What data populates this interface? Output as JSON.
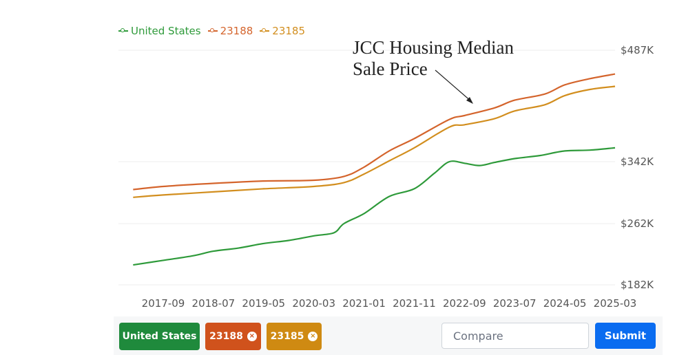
{
  "annotation": {
    "line1": "JCC Housing Median",
    "line2": "Sale Price"
  },
  "legend": [
    {
      "label": "United States",
      "color": "#2e9a3a"
    },
    {
      "label": "23188",
      "color": "#d4642c"
    },
    {
      "label": "23185",
      "color": "#d28e1e"
    }
  ],
  "controls": {
    "chips": [
      {
        "label": "United States",
        "color": "#1f8a3c",
        "removable": false
      },
      {
        "label": "23188",
        "color": "#d0521c",
        "removable": true
      },
      {
        "label": "23185",
        "color": "#cf8a12",
        "removable": true
      }
    ],
    "compare_placeholder": "Compare",
    "submit_label": "Submit",
    "remove_icon": "×"
  },
  "chart_data": {
    "type": "line",
    "title": "",
    "xlabel": "",
    "ylabel": "",
    "x_ticks": [
      "2017-09",
      "2018-07",
      "2019-05",
      "2020-03",
      "2021-01",
      "2021-11",
      "2022-09",
      "2023-07",
      "2024-05",
      "2025-03"
    ],
    "y_ticks": [
      "$182K",
      "$262K",
      "$342K",
      "$487K"
    ],
    "y_tick_values": [
      182000,
      262000,
      342000,
      487000
    ],
    "ylim": [
      182000,
      487000
    ],
    "x_range": [
      "2017-03",
      "2025-03"
    ],
    "grid": true,
    "legend_position": "top-left",
    "series": [
      {
        "name": "United States",
        "color": "#2e9a3a",
        "points": [
          [
            "2017-03",
            208000
          ],
          [
            "2017-09",
            214000
          ],
          [
            "2018-03",
            220000
          ],
          [
            "2018-07",
            226000
          ],
          [
            "2018-12",
            230000
          ],
          [
            "2019-05",
            236000
          ],
          [
            "2019-10",
            240000
          ],
          [
            "2020-03",
            246000
          ],
          [
            "2020-07",
            250000
          ],
          [
            "2020-09",
            262000
          ],
          [
            "2021-01",
            275000
          ],
          [
            "2021-06",
            297000
          ],
          [
            "2021-11",
            307000
          ],
          [
            "2022-03",
            327000
          ],
          [
            "2022-06",
            342000
          ],
          [
            "2022-09",
            340000
          ],
          [
            "2022-12",
            337000
          ],
          [
            "2023-03",
            341000
          ],
          [
            "2023-07",
            346000
          ],
          [
            "2023-12",
            350000
          ],
          [
            "2024-05",
            356000
          ],
          [
            "2024-10",
            357000
          ],
          [
            "2025-03",
            360000
          ]
        ]
      },
      {
        "name": "23188",
        "color": "#d4642c",
        "points": [
          [
            "2017-03",
            306000
          ],
          [
            "2017-09",
            310000
          ],
          [
            "2018-07",
            314000
          ],
          [
            "2019-05",
            317000
          ],
          [
            "2020-03",
            318000
          ],
          [
            "2020-09",
            323000
          ],
          [
            "2021-01",
            335000
          ],
          [
            "2021-06",
            356000
          ],
          [
            "2021-11",
            372000
          ],
          [
            "2022-06",
            397000
          ],
          [
            "2022-09",
            402000
          ],
          [
            "2023-03",
            412000
          ],
          [
            "2023-07",
            422000
          ],
          [
            "2024-01",
            430000
          ],
          [
            "2024-05",
            442000
          ],
          [
            "2024-10",
            450000
          ],
          [
            "2025-03",
            456000
          ]
        ]
      },
      {
        "name": "23185",
        "color": "#d28e1e",
        "points": [
          [
            "2017-03",
            296000
          ],
          [
            "2017-09",
            299000
          ],
          [
            "2018-07",
            303000
          ],
          [
            "2019-05",
            307000
          ],
          [
            "2020-03",
            310000
          ],
          [
            "2020-09",
            315000
          ],
          [
            "2021-01",
            326000
          ],
          [
            "2021-06",
            343000
          ],
          [
            "2021-11",
            360000
          ],
          [
            "2022-06",
            387000
          ],
          [
            "2022-09",
            390000
          ],
          [
            "2023-03",
            398000
          ],
          [
            "2023-07",
            408000
          ],
          [
            "2024-01",
            416000
          ],
          [
            "2024-05",
            428000
          ],
          [
            "2024-10",
            436000
          ],
          [
            "2025-03",
            440000
          ]
        ]
      }
    ]
  }
}
